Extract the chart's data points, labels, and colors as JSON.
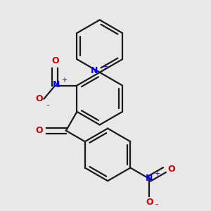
{
  "background_color": "#e8e8e8",
  "line_color": "#1a1a1a",
  "N_color": "#0000ff",
  "O_color": "#cc0000",
  "bond_lw": 1.6,
  "figsize": [
    3.0,
    3.0
  ],
  "dpi": 100,
  "xlim": [
    0.2,
    2.8
  ],
  "ylim": [
    0.1,
    2.9
  ]
}
